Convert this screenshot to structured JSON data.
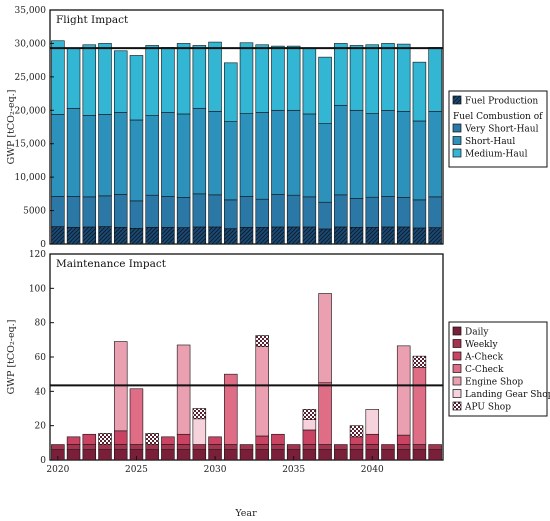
{
  "chart_data": [
    {
      "type": "bar",
      "title": "Flight Impact",
      "ylabel": "GWP [tCO₂-eq.]",
      "xlabel": "",
      "ylim": [
        0,
        35000
      ],
      "yticks": [
        0,
        5000,
        10000,
        15000,
        20000,
        25000,
        30000,
        35000
      ],
      "stacked": true,
      "reference_line": 29300,
      "x": [
        2020,
        2021,
        2022,
        2023,
        2024,
        2025,
        2026,
        2027,
        2028,
        2029,
        2030,
        2031,
        2032,
        2033,
        2034,
        2035,
        2036,
        2037,
        2038,
        2039,
        2040,
        2041,
        2042,
        2043,
        2044
      ],
      "series": [
        {
          "name": "Fuel Production",
          "color": "#1d4a72",
          "pattern": "hatch",
          "values": [
            2600,
            2500,
            2550,
            2600,
            2500,
            2350,
            2500,
            2500,
            2450,
            2550,
            2550,
            2300,
            2500,
            2500,
            2550,
            2550,
            2550,
            2250,
            2550,
            2500,
            2500,
            2550,
            2550,
            2400,
            2450
          ]
        },
        {
          "name": "Very Short-Haul",
          "color": "#2b78a6",
          "values": [
            4500,
            4600,
            4500,
            4600,
            4900,
            4100,
            4800,
            4600,
            4500,
            4950,
            4800,
            4300,
            4600,
            4200,
            4850,
            4750,
            4500,
            4000,
            4800,
            4300,
            4500,
            4550,
            4400,
            4200,
            4600
          ]
        },
        {
          "name": "Short-Haul",
          "color": "#2c92bb",
          "values": [
            12300,
            13200,
            12200,
            12200,
            12300,
            12100,
            11900,
            12600,
            12500,
            12800,
            12500,
            11700,
            12400,
            13000,
            12600,
            12700,
            12400,
            11750,
            13400,
            13200,
            12500,
            12900,
            12900,
            11800,
            12800
          ]
        },
        {
          "name": "Medium-Haul",
          "color": "#33b6d4",
          "values": [
            11000,
            9000,
            10550,
            10600,
            9200,
            9650,
            10500,
            9700,
            10550,
            9400,
            10350,
            8800,
            10600,
            10100,
            9600,
            9600,
            9900,
            9950,
            9250,
            9700,
            10300,
            10000,
            10050,
            8800,
            9550
          ]
        }
      ],
      "legend": {
        "items": [
          {
            "label": "Fuel Production",
            "color": "#1d4a72",
            "pattern": "hatch"
          }
        ],
        "subheading": "Fuel Combustion of",
        "subitems": [
          {
            "label": "Very Short-Haul",
            "color": "#2b78a6"
          },
          {
            "label": "Short-Haul",
            "color": "#2c92bb"
          },
          {
            "label": "Medium-Haul",
            "color": "#33b6d4"
          }
        ],
        "placement": "right"
      }
    },
    {
      "type": "bar",
      "title": "Maintenance Impact",
      "ylabel": "GWP [tCO₂-eq.]",
      "xlabel": "Year",
      "ylim": [
        0,
        120
      ],
      "yticks": [
        0,
        20,
        40,
        60,
        80,
        100,
        120
      ],
      "xticks": [
        2020,
        2025,
        2030,
        2035,
        2040
      ],
      "stacked": true,
      "reference_line": 43.5,
      "x": [
        2020,
        2021,
        2022,
        2023,
        2024,
        2025,
        2026,
        2027,
        2028,
        2029,
        2030,
        2031,
        2032,
        2033,
        2034,
        2035,
        2036,
        2037,
        2038,
        2039,
        2040,
        2041,
        2042,
        2043,
        2044
      ],
      "series": [
        {
          "name": "Daily",
          "color": "#7a1f3a",
          "values": [
            6,
            6,
            6,
            6,
            6,
            6,
            6,
            6,
            6,
            6,
            6,
            6,
            6,
            6,
            6,
            6,
            6,
            6,
            6,
            6,
            6,
            6,
            6,
            6,
            6
          ]
        },
        {
          "name": "Weekly",
          "color": "#a3334f",
          "values": [
            3,
            3,
            3,
            3,
            3,
            3,
            3,
            3,
            3,
            3,
            3,
            3,
            3,
            3,
            3,
            3,
            3,
            3,
            3,
            3,
            3,
            3,
            3,
            3,
            3
          ]
        },
        {
          "name": "A-Check",
          "color": "#c94362",
          "values": [
            0,
            4.5,
            6,
            0,
            8,
            0,
            0,
            4.5,
            6,
            0,
            4.5,
            0,
            0,
            5,
            6,
            0,
            8.5,
            0,
            0,
            4.5,
            6,
            0,
            5.5,
            0,
            0
          ]
        },
        {
          "name": "C-Check",
          "color": "#df6d86",
          "values": [
            0,
            0,
            0,
            0,
            0,
            32.5,
            0,
            0,
            0,
            0,
            0,
            41,
            0,
            0,
            0,
            0,
            0,
            36,
            0,
            0,
            0,
            0,
            0,
            45,
            0
          ]
        },
        {
          "name": "Engine Shop",
          "color": "#eba0b2",
          "values": [
            0,
            0,
            0,
            0,
            52,
            0,
            0,
            0,
            52,
            0,
            0,
            0,
            0,
            52,
            0,
            0,
            0,
            52,
            0,
            0,
            0,
            0,
            52,
            0,
            0
          ]
        },
        {
          "name": "Landing Gear Shop",
          "color": "#f6d2dc",
          "values": [
            0,
            0,
            0,
            0,
            0,
            0,
            0,
            0,
            0,
            15,
            0,
            0,
            0,
            0,
            0,
            0,
            6,
            0,
            0,
            0,
            14.5,
            0,
            0,
            0,
            0
          ]
        },
        {
          "name": "APU Shop",
          "color": "#e9c6cf",
          "pattern": "checker",
          "values": [
            0,
            0,
            0,
            6.5,
            0,
            0,
            6.5,
            0,
            0,
            6,
            0,
            0,
            0,
            6.5,
            0,
            0,
            6,
            0,
            0,
            6.5,
            0,
            0,
            0,
            6.5,
            0
          ]
        }
      ],
      "legend": {
        "items": [
          {
            "label": "Daily",
            "color": "#7a1f3a"
          },
          {
            "label": "Weekly",
            "color": "#a3334f"
          },
          {
            "label": "A-Check",
            "color": "#c94362"
          },
          {
            "label": "C-Check",
            "color": "#df6d86"
          },
          {
            "label": "Engine Shop",
            "color": "#eba0b2"
          },
          {
            "label": "Landing Gear Shop",
            "color": "#f6d2dc"
          },
          {
            "label": "APU Shop",
            "color": "#e9c6cf",
            "pattern": "checker"
          }
        ],
        "placement": "right"
      }
    }
  ]
}
